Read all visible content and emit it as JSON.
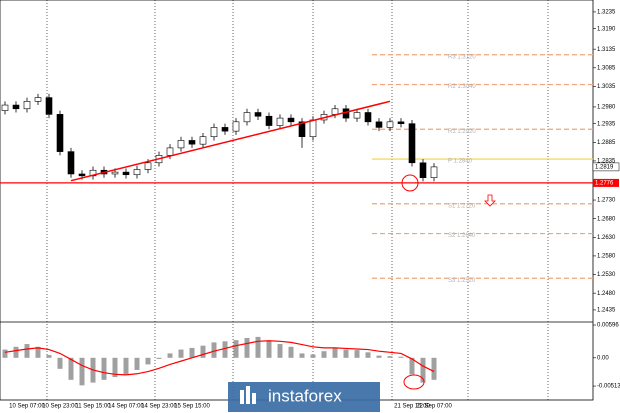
{
  "chart_data": [
    {
      "type": "candlestick",
      "categories": [
        null,
        null,
        "10 Sep 07:00",
        null,
        null,
        "10 Sep 23:00",
        null,
        null,
        "11 Sep 15:00",
        null,
        null,
        "14 Sep 07:00",
        null,
        null,
        "14 Sep 23:00",
        null,
        null,
        "15 Sep 15:00",
        null,
        null,
        null,
        null,
        null,
        null,
        null,
        null,
        null,
        null,
        null,
        null,
        null,
        null,
        null,
        null,
        null,
        null,
        null,
        "21 Sep 15:00",
        null,
        "22 Sep 07:00"
      ],
      "open": [
        1.297,
        1.2985,
        1.2975,
        1.2995,
        1.3005,
        1.296,
        1.286,
        1.28,
        1.2795,
        1.281,
        1.28,
        1.2805,
        1.2798,
        1.2812,
        1.283,
        1.285,
        1.287,
        1.289,
        1.288,
        1.29,
        1.2925,
        1.2915,
        1.294,
        1.2965,
        1.2955,
        1.293,
        1.295,
        1.294,
        1.29,
        1.2945,
        1.296,
        1.2975,
        1.295,
        1.2965,
        1.294,
        1.2925,
        1.294,
        1.2935,
        1.283,
        1.279
      ],
      "high": [
        1.2995,
        1.2995,
        1.3005,
        1.3015,
        1.3015,
        1.297,
        1.287,
        1.281,
        1.282,
        1.282,
        1.2815,
        1.2815,
        1.2822,
        1.284,
        1.286,
        1.288,
        1.29,
        1.29,
        1.291,
        1.2935,
        1.2935,
        1.295,
        1.2975,
        1.2975,
        1.2965,
        1.296,
        1.296,
        1.295,
        1.2955,
        1.297,
        1.2985,
        1.2985,
        1.2975,
        1.2975,
        1.295,
        1.295,
        1.295,
        1.2945,
        1.284,
        1.2829
      ],
      "low": [
        1.296,
        1.2965,
        1.2965,
        1.2985,
        1.295,
        1.285,
        1.279,
        1.2785,
        1.2785,
        1.279,
        1.279,
        1.2788,
        1.2788,
        1.2802,
        1.282,
        1.284,
        1.286,
        1.287,
        1.287,
        1.289,
        1.2905,
        1.2905,
        1.293,
        1.2945,
        1.292,
        1.292,
        1.293,
        1.287,
        1.289,
        1.2935,
        1.295,
        1.294,
        1.294,
        1.293,
        1.2915,
        1.2915,
        1.2925,
        1.282,
        1.278,
        1.278
      ],
      "close": [
        1.2985,
        1.2975,
        1.2995,
        1.3005,
        1.296,
        1.286,
        1.28,
        1.2795,
        1.281,
        1.28,
        1.2805,
        1.2798,
        1.2812,
        1.283,
        1.285,
        1.287,
        1.289,
        1.288,
        1.29,
        1.2925,
        1.2915,
        1.294,
        1.2965,
        1.2955,
        1.293,
        1.295,
        1.294,
        1.29,
        1.2945,
        1.296,
        1.2975,
        1.295,
        1.2965,
        1.294,
        1.2925,
        1.294,
        1.2935,
        1.283,
        1.279,
        1.2819
      ],
      "up_color": "#ffffff",
      "down_color": "#000000",
      "ylim": [
        1.2408,
        1.3267
      ],
      "yticks": [
        1.3235,
        {
          "value": 1.319,
          "label": "1.3190"
        },
        1.3135,
        1.3085,
        1.3035,
        {
          "value": 1.298,
          "label": "1.2980"
        },
        1.2935,
        1.2885,
        1.2835,
        {
          "value": 1.273,
          "label": "1.2730"
        },
        {
          "value": 1.268,
          "label": "1.2680"
        },
        {
          "value": 1.263,
          "label": "1.2630"
        },
        {
          "value": 1.258,
          "label": "1.2580"
        },
        {
          "value": 1.253,
          "label": "1.2530"
        },
        {
          "value": 1.248,
          "label": "1.2480"
        },
        1.2435
      ],
      "levels": [
        {
          "label": "R3 1.3120",
          "value": 1.312,
          "color": "#f4a27a"
        },
        {
          "label": "R2 1.3040",
          "value": 1.304,
          "color": "#f4a27a"
        },
        {
          "label": "R1 1.2920",
          "value": 1.292,
          "color": "#f4a27a"
        },
        {
          "label": "P 1.2840",
          "value": 1.284,
          "color": "#f5d142"
        },
        {
          "label": "S1 1.2720",
          "value": 1.272,
          "color": "#f4a27a"
        },
        {
          "label": "S2 1.2640",
          "value": 1.264,
          "color": "#f4a27a"
        },
        {
          "label": "S3 1.2520",
          "value": 1.252,
          "color": "#f4a27a"
        }
      ],
      "support": {
        "value": 1.2776,
        "color": "#ff0000"
      },
      "trendline": {
        "x": [
          6,
          35
        ],
        "y": [
          1.2782,
          1.2995
        ],
        "color": "#ff0000"
      }
    },
    {
      "type": "bar",
      "values": [
        0.0015,
        0.002,
        0.0025,
        0.002,
        0.0005,
        -0.002,
        -0.004,
        -0.005,
        -0.0045,
        -0.004,
        -0.0035,
        -0.003,
        -0.0022,
        -0.0012,
        -0.0002,
        0.0008,
        0.0015,
        0.0018,
        0.0022,
        0.0028,
        0.003,
        0.0032,
        0.0036,
        0.0038,
        0.003,
        0.0025,
        0.002,
        0.0008,
        0.0006,
        0.0012,
        0.0018,
        0.0015,
        0.0014,
        0.001,
        0.0004,
        0.0003,
        0.0002,
        -0.003,
        -0.0045,
        -0.004
      ],
      "signal": [
        0.001,
        0.0013,
        0.0016,
        0.0018,
        0.0015,
        0.0008,
        -0.0003,
        -0.0014,
        -0.0022,
        -0.0027,
        -0.003,
        -0.0031,
        -0.0029,
        -0.0025,
        -0.0019,
        -0.0012,
        -0.0006,
        0.0,
        0.0006,
        0.0012,
        0.0017,
        0.0022,
        0.0026,
        0.003,
        0.0031,
        0.003,
        0.0028,
        0.0024,
        0.002,
        0.0018,
        0.0018,
        0.0017,
        0.0016,
        0.0015,
        0.0012,
        0.001,
        0.0008,
        -0.0002,
        -0.0015,
        -0.0025
      ],
      "color": "#a0a0a0",
      "signal_color": "#ff0000",
      "ylim": [
        -0.0073,
        0.00596
      ],
      "yticks": [
        0.00596,
        {
          "value": 0,
          "label": "0.00"
        },
        -0.00513
      ]
    }
  ],
  "watermark": "instaforex"
}
